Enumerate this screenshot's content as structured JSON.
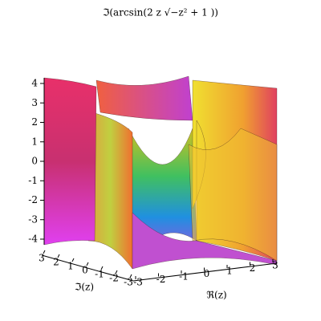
{
  "chart_data": {
    "type": "surface3d",
    "title": "ℑ(arcsin(2 z √−z² + 1 ))",
    "x_label": "ℜ(z)",
    "y_label": "ℑ(z)",
    "xlim": [
      -3,
      3
    ],
    "xticks": [
      -3,
      -2,
      -1,
      0,
      1,
      2,
      3
    ],
    "ylim": [
      -3,
      3
    ],
    "yticks": [
      3,
      2,
      1,
      0,
      -1,
      -2,
      -3
    ],
    "zlim": [
      -4,
      4
    ],
    "zticks": [
      -4,
      -3,
      -2,
      -1,
      0,
      1,
      2,
      3,
      4
    ]
  }
}
